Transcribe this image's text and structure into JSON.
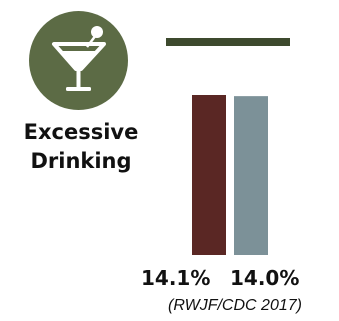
{
  "metric": {
    "title_line1": "Excessive",
    "title_line2": "Drinking",
    "source": "(RWJF/CDC 2017)",
    "icon": "cocktail-icon"
  },
  "colors": {
    "icon_background": "#5c6b45",
    "header_rule": "#3d4a2e",
    "bar_1": "#5a2724",
    "bar_2": "#7c9198"
  },
  "chart_data": {
    "type": "bar",
    "categories": [
      "",
      ""
    ],
    "values": [
      14.1,
      14.0
    ],
    "labels": [
      "14.1%",
      "14.0%"
    ],
    "title": "Excessive Drinking",
    "xlabel": "",
    "ylabel": "",
    "grid": false,
    "legend": "none"
  }
}
